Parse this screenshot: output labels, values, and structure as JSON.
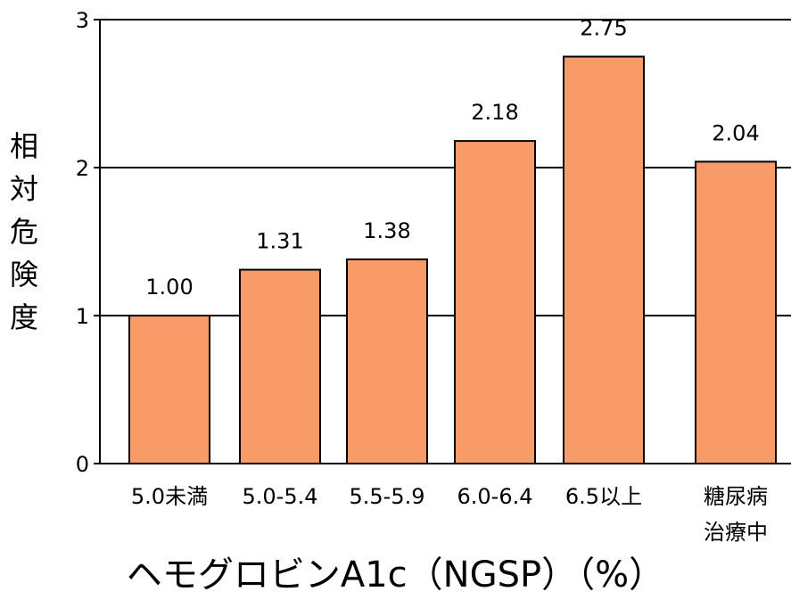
{
  "chart_data": {
    "type": "bar",
    "categories": [
      [
        "5.0未満"
      ],
      [
        "5.0-5.4"
      ],
      [
        "5.5-5.9"
      ],
      [
        "6.0-6.4"
      ],
      [
        "6.5以上"
      ],
      [
        "糖尿病",
        "治療中"
      ]
    ],
    "values": [
      1.0,
      1.31,
      1.38,
      2.18,
      2.75,
      2.04
    ],
    "value_labels": [
      "1.00",
      "1.31",
      "1.38",
      "2.18",
      "2.75",
      "2.04"
    ],
    "yticks": [
      "0",
      "1",
      "2",
      "3"
    ],
    "ylim": [
      0,
      3
    ],
    "ylabel": "相対危険度",
    "xlabel": "ヘモグロビンA1c（NGSP）（%）",
    "grid": true,
    "colors": {
      "bar_fill": "#F99B68",
      "bar_stroke": "#000000",
      "grid": "#000000"
    }
  }
}
